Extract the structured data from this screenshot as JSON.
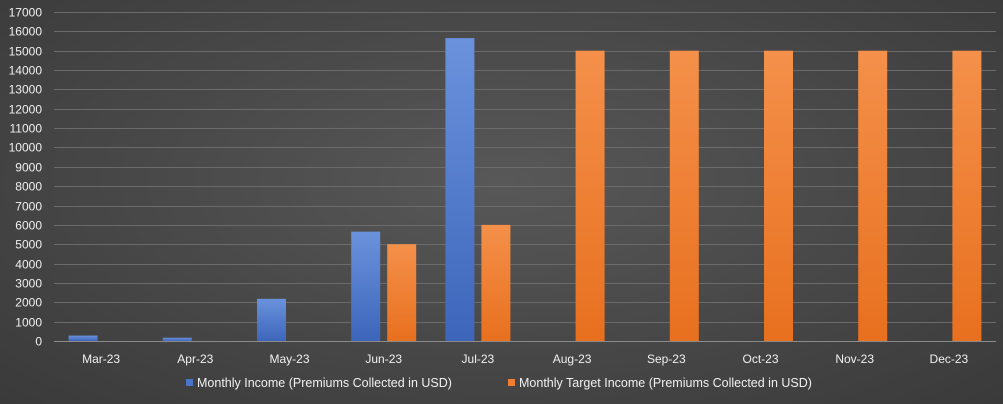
{
  "chart_data": {
    "type": "bar",
    "title": "",
    "xlabel": "",
    "ylabel": "",
    "categories": [
      "Mar-23",
      "Apr-23",
      "May-23",
      "Jun-23",
      "Jul-23",
      "Aug-23",
      "Sep-23",
      "Oct-23",
      "Nov-23",
      "Dec-23"
    ],
    "series": [
      {
        "name": "Monthly Income (Premiums Collected in USD)",
        "color": "#4a74c8",
        "values": [
          280,
          170,
          2180,
          5650,
          15650,
          0,
          0,
          0,
          0,
          0
        ]
      },
      {
        "name": "Monthly Target Income (Premiums Collected in USD)",
        "color": "#f07d32",
        "values": [
          0,
          0,
          0,
          5000,
          6000,
          15000,
          15000,
          15000,
          15000,
          15000
        ]
      }
    ],
    "ylim": [
      0,
      17000
    ],
    "yticks": [
      0,
      1000,
      2000,
      3000,
      4000,
      5000,
      6000,
      7000,
      8000,
      9000,
      10000,
      11000,
      12000,
      13000,
      14000,
      15000,
      16000,
      17000
    ],
    "grid": true,
    "legend": "bottom-center"
  }
}
